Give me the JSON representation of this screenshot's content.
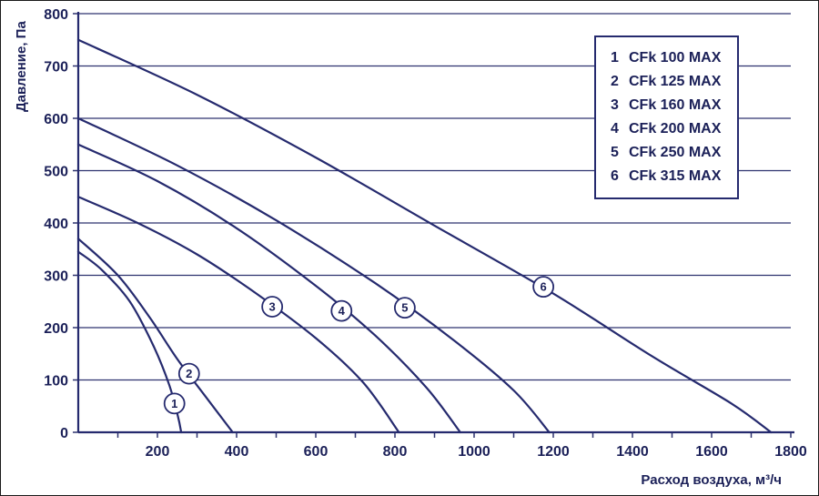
{
  "colors": {
    "line": "#252a6e",
    "grid": "#2e336f",
    "text": "#1b2058",
    "background": "#ffffff"
  },
  "legend": {
    "items": [
      {
        "num": "1",
        "label": "CFk 100 MAX"
      },
      {
        "num": "2",
        "label": "CFk 125 MAX"
      },
      {
        "num": "3",
        "label": "CFk 160 MAX"
      },
      {
        "num": "4",
        "label": "CFk 200 MAX"
      },
      {
        "num": "5",
        "label": "CFk 250 MAX"
      },
      {
        "num": "6",
        "label": "CFk 315 MAX"
      }
    ]
  },
  "chart_data": {
    "type": "line",
    "title": "",
    "xlabel": "Расход воздуха, м³/ч",
    "ylabel": "Давление, Па",
    "xlim": [
      0,
      1800
    ],
    "ylim": [
      0,
      800
    ],
    "x_tick_labels": [
      200,
      400,
      600,
      800,
      1000,
      1200,
      1400,
      1600,
      1800
    ],
    "x_minor_tick_step": 100,
    "y_ticks": [
      0,
      100,
      200,
      300,
      400,
      500,
      600,
      700,
      800
    ],
    "grid": "horizontal",
    "legend_position": "top-right",
    "series": [
      {
        "num": "1",
        "name": "CFk 100 MAX",
        "points": [
          [
            0,
            345
          ],
          [
            60,
            310
          ],
          [
            130,
            250
          ],
          [
            190,
            165
          ],
          [
            230,
            90
          ],
          [
            252,
            30
          ],
          [
            260,
            0
          ]
        ],
        "marker": [
          243,
          55
        ]
      },
      {
        "num": "2",
        "name": "CFk 125 MAX",
        "points": [
          [
            0,
            370
          ],
          [
            100,
            300
          ],
          [
            180,
            220
          ],
          [
            250,
            140
          ],
          [
            320,
            70
          ],
          [
            390,
            0
          ]
        ],
        "marker": [
          280,
          112
        ]
      },
      {
        "num": "3",
        "name": "CFk 160 MAX",
        "points": [
          [
            0,
            450
          ],
          [
            150,
            400
          ],
          [
            300,
            340
          ],
          [
            450,
            265
          ],
          [
            600,
            180
          ],
          [
            720,
            95
          ],
          [
            810,
            0
          ]
        ],
        "marker": [
          490,
          240
        ]
      },
      {
        "num": "4",
        "name": "CFk 200 MAX",
        "points": [
          [
            0,
            550
          ],
          [
            200,
            480
          ],
          [
            400,
            390
          ],
          [
            600,
            280
          ],
          [
            750,
            185
          ],
          [
            880,
            85
          ],
          [
            965,
            0
          ]
        ],
        "marker": [
          665,
          232
        ]
      },
      {
        "num": "5",
        "name": "CFk 250 MAX",
        "points": [
          [
            0,
            600
          ],
          [
            250,
            510
          ],
          [
            500,
            405
          ],
          [
            750,
            285
          ],
          [
            950,
            175
          ],
          [
            1100,
            80
          ],
          [
            1190,
            0
          ]
        ],
        "marker": [
          825,
          238
        ]
      },
      {
        "num": "6",
        "name": "CFk 315 MAX",
        "points": [
          [
            0,
            750
          ],
          [
            300,
            645
          ],
          [
            600,
            525
          ],
          [
            900,
            395
          ],
          [
            1200,
            265
          ],
          [
            1450,
            145
          ],
          [
            1650,
            55
          ],
          [
            1750,
            0
          ]
        ],
        "marker": [
          1175,
          278
        ]
      }
    ]
  }
}
